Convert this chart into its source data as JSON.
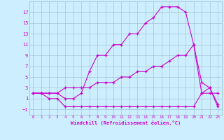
{
  "xlabel": "Windchill (Refroidissement éolien,°C)",
  "bg_color": "#cceeff",
  "line_color": "#cc00cc",
  "grid_color": "#99bbcc",
  "xlim": [
    -0.5,
    23.5
  ],
  "ylim": [
    -2,
    19
  ],
  "xticks": [
    0,
    1,
    2,
    3,
    4,
    5,
    6,
    7,
    8,
    9,
    10,
    11,
    12,
    13,
    14,
    15,
    16,
    17,
    18,
    19,
    20,
    21,
    22,
    23
  ],
  "yticks": [
    -1,
    1,
    3,
    5,
    7,
    9,
    11,
    13,
    15,
    17
  ],
  "curve1_x": [
    0,
    1,
    2,
    3,
    4,
    5,
    6,
    7,
    8,
    9,
    10,
    11,
    12,
    13,
    14,
    15,
    16,
    17,
    18,
    19,
    20,
    21,
    22,
    23
  ],
  "curve1_y": [
    2,
    2,
    2,
    2,
    1,
    1,
    2,
    6,
    9,
    9,
    11,
    11,
    13,
    13,
    15,
    16,
    18,
    18,
    18,
    17,
    11,
    2,
    2,
    2
  ],
  "curve2_x": [
    0,
    1,
    2,
    3,
    4,
    5,
    6,
    7,
    8,
    9,
    10,
    11,
    12,
    13,
    14,
    15,
    16,
    17,
    18,
    19,
    20,
    21,
    22,
    23
  ],
  "curve2_y": [
    2,
    2,
    2,
    2,
    3,
    3,
    3,
    3,
    4,
    4,
    4,
    5,
    5,
    6,
    6,
    7,
    7,
    8,
    9,
    9,
    11,
    4,
    3,
    0
  ],
  "curve3_x": [
    0,
    1,
    2,
    3,
    4,
    5,
    6,
    7,
    8,
    9,
    10,
    11,
    12,
    13,
    14,
    15,
    16,
    17,
    18,
    19,
    20,
    21,
    22,
    23
  ],
  "curve3_y": [
    2,
    2,
    1,
    1,
    -0.5,
    -0.5,
    -0.5,
    -0.5,
    -0.5,
    -0.5,
    -0.5,
    -0.5,
    -0.5,
    -0.5,
    -0.5,
    -0.5,
    -0.5,
    -0.5,
    -0.5,
    -0.5,
    -0.5,
    2,
    3,
    -0.5
  ]
}
